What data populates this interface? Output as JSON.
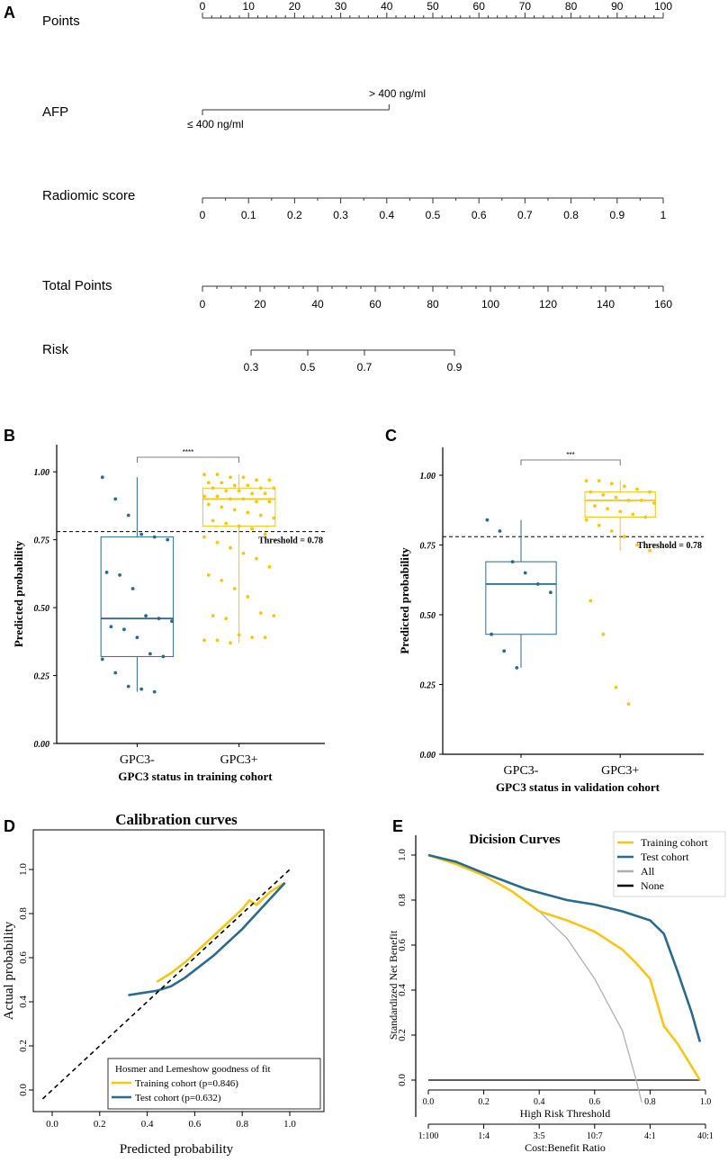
{
  "panel_labels": {
    "A": "A",
    "B": "B",
    "C": "C",
    "D": "D",
    "E": "E"
  },
  "nomogram": {
    "rows": [
      {
        "label": "Points",
        "ticks": [
          "0",
          "10",
          "20",
          "30",
          "40",
          "50",
          "60",
          "70",
          "80",
          "90",
          "100"
        ]
      },
      {
        "label": "AFP",
        "levels": [
          "≤ 400 ng/ml",
          "> 400 ng/ml"
        ]
      },
      {
        "label": "Radiomic score",
        "ticks": [
          "0",
          "0.1",
          "0.2",
          "0.3",
          "0.4",
          "0.5",
          "0.6",
          "0.7",
          "0.8",
          "0.9",
          "1"
        ]
      },
      {
        "label": "Total Points",
        "ticks": [
          "0",
          "20",
          "40",
          "60",
          "80",
          "100",
          "120",
          "140",
          "160"
        ]
      },
      {
        "label": "Risk",
        "ticks": [
          "0.3",
          "0.5",
          "0.7",
          "0.9"
        ]
      }
    ]
  },
  "chart_data": [
    {
      "id": "B",
      "type": "box",
      "categories": [
        "GPC3-",
        "GPC3+"
      ],
      "xlabel": "GPC3 status in training cohort",
      "ylabel": "Predicted probability",
      "ylim": [
        0,
        1.1
      ],
      "yticks": [
        "0.00",
        "0.25",
        "0.50",
        "0.75",
        "1.00"
      ],
      "threshold": 0.78,
      "threshold_label": "Threshold = 0.78",
      "significance": "****",
      "boxes": [
        {
          "category": "GPC3-",
          "color": "#2c6a8c",
          "q1": 0.32,
          "median": 0.46,
          "q3": 0.76,
          "whisker_low": 0.19,
          "whisker_high": 0.98
        },
        {
          "category": "GPC3+",
          "color": "#f5c518",
          "q1": 0.8,
          "median": 0.9,
          "q3": 0.94,
          "whisker_low": 0.37,
          "whisker_high": 0.99
        }
      ],
      "points": {
        "GPC3-": [
          0.98,
          0.9,
          0.84,
          0.77,
          0.76,
          0.75,
          0.63,
          0.62,
          0.57,
          0.47,
          0.46,
          0.45,
          0.43,
          0.42,
          0.39,
          0.33,
          0.32,
          0.31,
          0.26,
          0.21,
          0.2,
          0.19
        ],
        "GPC3+": [
          0.99,
          0.99,
          0.98,
          0.98,
          0.97,
          0.97,
          0.96,
          0.96,
          0.95,
          0.95,
          0.94,
          0.94,
          0.94,
          0.93,
          0.93,
          0.92,
          0.92,
          0.91,
          0.91,
          0.9,
          0.9,
          0.89,
          0.89,
          0.88,
          0.87,
          0.86,
          0.85,
          0.84,
          0.83,
          0.82,
          0.81,
          0.8,
          0.79,
          0.77,
          0.76,
          0.74,
          0.72,
          0.7,
          0.68,
          0.65,
          0.62,
          0.6,
          0.57,
          0.54,
          0.48,
          0.47,
          0.47,
          0.46,
          0.4,
          0.39,
          0.39,
          0.38,
          0.38,
          0.37
        ]
      }
    },
    {
      "id": "C",
      "type": "box",
      "categories": [
        "GPC3-",
        "GPC3+"
      ],
      "xlabel": "GPC3 status in validation cohort",
      "ylabel": "Predicted probability",
      "ylim": [
        0,
        1.1
      ],
      "yticks": [
        "0.00",
        "0.25",
        "0.50",
        "0.75",
        "1.00"
      ],
      "threshold": 0.78,
      "threshold_label": "Threshold = 0.78",
      "significance": "***",
      "boxes": [
        {
          "category": "GPC3-",
          "color": "#2c6a8c",
          "q1": 0.43,
          "median": 0.61,
          "q3": 0.69,
          "whisker_low": 0.31,
          "whisker_high": 0.84
        },
        {
          "category": "GPC3+",
          "color": "#f5c518",
          "q1": 0.85,
          "median": 0.91,
          "q3": 0.94,
          "whisker_low": 0.73,
          "whisker_high": 0.98
        }
      ],
      "points": {
        "GPC3-": [
          0.84,
          0.8,
          0.69,
          0.65,
          0.61,
          0.58,
          0.43,
          0.37,
          0.31
        ],
        "GPC3+": [
          0.98,
          0.98,
          0.97,
          0.96,
          0.95,
          0.94,
          0.94,
          0.93,
          0.92,
          0.91,
          0.91,
          0.9,
          0.89,
          0.88,
          0.87,
          0.86,
          0.85,
          0.84,
          0.82,
          0.8,
          0.78,
          0.75,
          0.73,
          0.55,
          0.43,
          0.24,
          0.18
        ]
      }
    },
    {
      "id": "D",
      "type": "line",
      "title": "Calibration curves",
      "xlabel": "Predicted probability",
      "ylabel": "Actual probability",
      "xlim": [
        0,
        1.0
      ],
      "ylim": [
        0,
        1.0
      ],
      "xticks": [
        "0.0",
        "0.2",
        "0.4",
        "0.6",
        "0.8",
        "1.0"
      ],
      "yticks": [
        "0.0",
        "0.2",
        "0.4",
        "0.6",
        "0.8",
        "1.0"
      ],
      "legend_title": "Hosmer and Lemeshow goodness of fit",
      "series": [
        {
          "name": "Training cohort (p=0.846)",
          "color": "#f5c518",
          "x": [
            0.44,
            0.5,
            0.56,
            0.62,
            0.68,
            0.74,
            0.8,
            0.83,
            0.86,
            0.92,
            0.98
          ],
          "y": [
            0.49,
            0.53,
            0.58,
            0.64,
            0.7,
            0.76,
            0.82,
            0.86,
            0.84,
            0.9,
            0.94
          ]
        },
        {
          "name": "Test cohort (p=0.632)",
          "color": "#2c6a8c",
          "x": [
            0.32,
            0.38,
            0.44,
            0.5,
            0.56,
            0.62,
            0.68,
            0.74,
            0.8,
            0.86,
            0.92,
            0.98
          ],
          "y": [
            0.43,
            0.44,
            0.45,
            0.47,
            0.51,
            0.56,
            0.61,
            0.67,
            0.73,
            0.8,
            0.87,
            0.94
          ]
        },
        {
          "name": "ideal",
          "color": "#000000",
          "dashed": true,
          "x": [
            -0.04,
            1.0
          ],
          "y": [
            -0.04,
            1.0
          ]
        }
      ]
    },
    {
      "id": "E",
      "type": "line",
      "title": "Dicision Curves",
      "xlabel": "High Risk Threshold",
      "ylabel": "Standardized Net Benefit",
      "xlabel2": "Cost:Benefit Ratio",
      "xlim": [
        0,
        1.0
      ],
      "ylim": [
        -0.1,
        1.05
      ],
      "xticks": [
        "0.0",
        "0.2",
        "0.4",
        "0.6",
        "0.8",
        "1.0"
      ],
      "yticks": [
        "0.0",
        "0.2",
        "0.4",
        "0.6",
        "0.8",
        "1.0"
      ],
      "x2ticks": [
        "1:100",
        "1:4",
        "3:5",
        "10:7",
        "4:1",
        "40:1"
      ],
      "series": [
        {
          "name": "Training cohort",
          "color": "#f5c518",
          "x": [
            0,
            0.1,
            0.2,
            0.3,
            0.4,
            0.5,
            0.6,
            0.7,
            0.75,
            0.8,
            0.85,
            0.9,
            0.98
          ],
          "y": [
            1.0,
            0.96,
            0.91,
            0.84,
            0.75,
            0.71,
            0.66,
            0.58,
            0.52,
            0.45,
            0.24,
            0.16,
            0.0
          ]
        },
        {
          "name": "Test cohort",
          "color": "#2c6a8c",
          "x": [
            0,
            0.1,
            0.2,
            0.35,
            0.5,
            0.6,
            0.7,
            0.8,
            0.85,
            0.9,
            0.95,
            0.98
          ],
          "y": [
            1.0,
            0.97,
            0.92,
            0.85,
            0.8,
            0.78,
            0.75,
            0.71,
            0.65,
            0.48,
            0.3,
            0.17
          ]
        },
        {
          "name": "All",
          "color": "#b0b0b0",
          "x": [
            0,
            0.1,
            0.2,
            0.3,
            0.4,
            0.5,
            0.6,
            0.7,
            0.75,
            0.77
          ],
          "y": [
            1.0,
            0.96,
            0.91,
            0.84,
            0.75,
            0.63,
            0.45,
            0.22,
            0.0,
            -0.1
          ]
        },
        {
          "name": "None",
          "color": "#000000",
          "x": [
            0,
            0.98
          ],
          "y": [
            0,
            0
          ]
        }
      ]
    }
  ]
}
